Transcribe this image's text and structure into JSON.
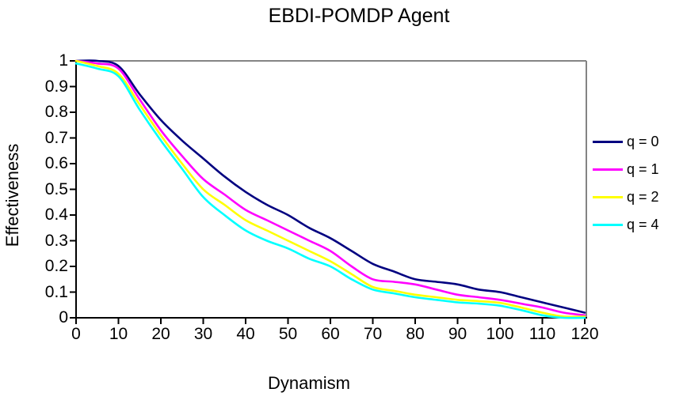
{
  "chart_data": {
    "type": "line",
    "title": "EBDI-POMDP Agent",
    "xlabel": "Dynamism",
    "ylabel": "Effectiveness",
    "xlim": [
      0,
      120
    ],
    "ylim": [
      0,
      1
    ],
    "grid": false,
    "legend_position": "right",
    "axis_color": "#000000",
    "plot_border_color": "#848484",
    "background_color": "#ffffff",
    "xticks": [
      0,
      10,
      20,
      30,
      40,
      50,
      60,
      70,
      80,
      90,
      100,
      110,
      120
    ],
    "yticks": [
      0,
      0.1,
      0.2,
      0.3,
      0.4,
      0.5,
      0.6,
      0.7,
      0.8,
      0.9,
      1
    ],
    "ytick_labels": [
      "0",
      "0.1",
      "0.2",
      "0.3",
      "0.4",
      "0.5",
      "0.6",
      "0.7",
      "0.8",
      "0.9",
      "1"
    ],
    "x": [
      0,
      5,
      10,
      15,
      20,
      25,
      30,
      35,
      40,
      45,
      50,
      55,
      60,
      65,
      70,
      75,
      80,
      85,
      90,
      95,
      100,
      105,
      110,
      115,
      120
    ],
    "series": [
      {
        "name": "q = 0",
        "color": "#000080",
        "values": [
          1.0,
          1.0,
          0.98,
          0.87,
          0.77,
          0.69,
          0.62,
          0.55,
          0.49,
          0.44,
          0.4,
          0.35,
          0.31,
          0.26,
          0.21,
          0.18,
          0.15,
          0.14,
          0.13,
          0.11,
          0.1,
          0.08,
          0.06,
          0.04,
          0.02
        ]
      },
      {
        "name": "q = 1",
        "color": "#ff00ff",
        "values": [
          1.0,
          0.99,
          0.97,
          0.85,
          0.73,
          0.63,
          0.54,
          0.48,
          0.42,
          0.38,
          0.34,
          0.3,
          0.26,
          0.2,
          0.15,
          0.14,
          0.13,
          0.11,
          0.09,
          0.08,
          0.07,
          0.055,
          0.04,
          0.02,
          0.01
        ]
      },
      {
        "name": "q = 2",
        "color": "#ffff00",
        "values": [
          1.0,
          0.98,
          0.95,
          0.83,
          0.71,
          0.6,
          0.5,
          0.44,
          0.38,
          0.34,
          0.3,
          0.26,
          0.22,
          0.17,
          0.12,
          0.105,
          0.09,
          0.08,
          0.07,
          0.065,
          0.058,
          0.04,
          0.02,
          0.005,
          0.005
        ]
      },
      {
        "name": "q = 4",
        "color": "#00ffff",
        "values": [
          0.99,
          0.97,
          0.94,
          0.81,
          0.69,
          0.58,
          0.47,
          0.4,
          0.34,
          0.3,
          0.27,
          0.23,
          0.2,
          0.15,
          0.11,
          0.095,
          0.08,
          0.07,
          0.06,
          0.055,
          0.047,
          0.03,
          0.01,
          0.0,
          0.0
        ]
      }
    ]
  }
}
